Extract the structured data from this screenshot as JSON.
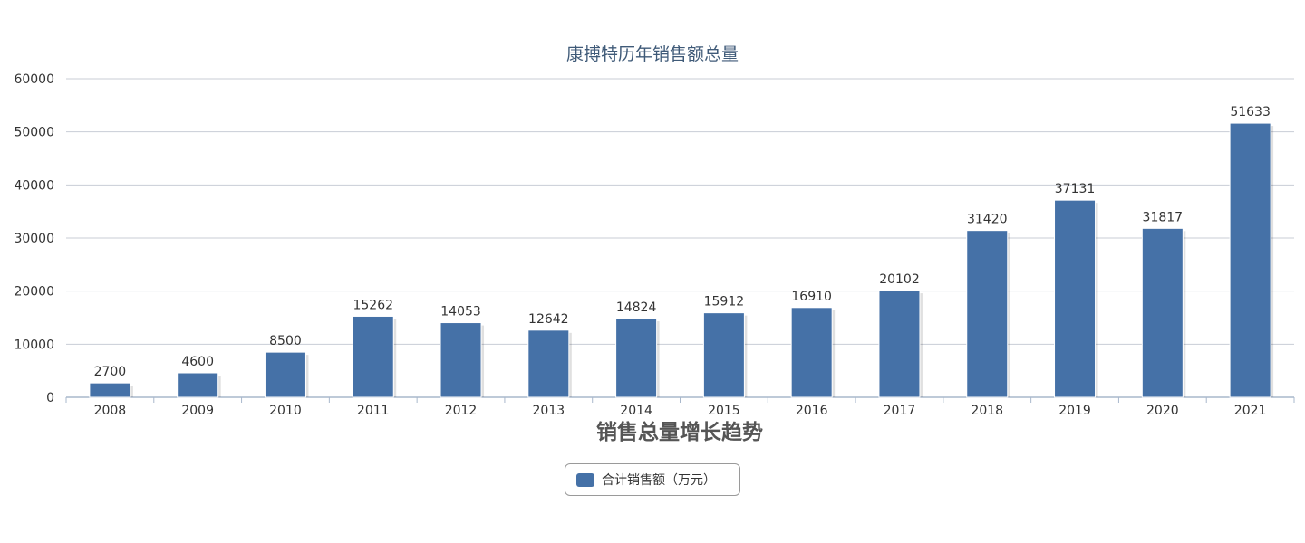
{
  "chart_data": {
    "type": "bar",
    "title": "康搏特历年销售额总量",
    "xlabel": "销售总量增长趋势",
    "ylabel": "",
    "ylim": [
      0,
      60000
    ],
    "yticks": [
      0,
      10000,
      20000,
      30000,
      40000,
      50000,
      60000
    ],
    "grid": true,
    "legend_position": "bottom-center",
    "categories": [
      "2008",
      "2009",
      "2010",
      "2011",
      "2012",
      "2013",
      "2014",
      "2015",
      "2016",
      "2017",
      "2018",
      "2019",
      "2020",
      "2021"
    ],
    "series": [
      {
        "name": "合计销售额（万元）",
        "color": "#4571a7",
        "values": [
          2700,
          4600,
          8500,
          15262,
          14053,
          12642,
          14824,
          15912,
          16910,
          20102,
          31420,
          37131,
          31817,
          51633
        ]
      }
    ]
  }
}
